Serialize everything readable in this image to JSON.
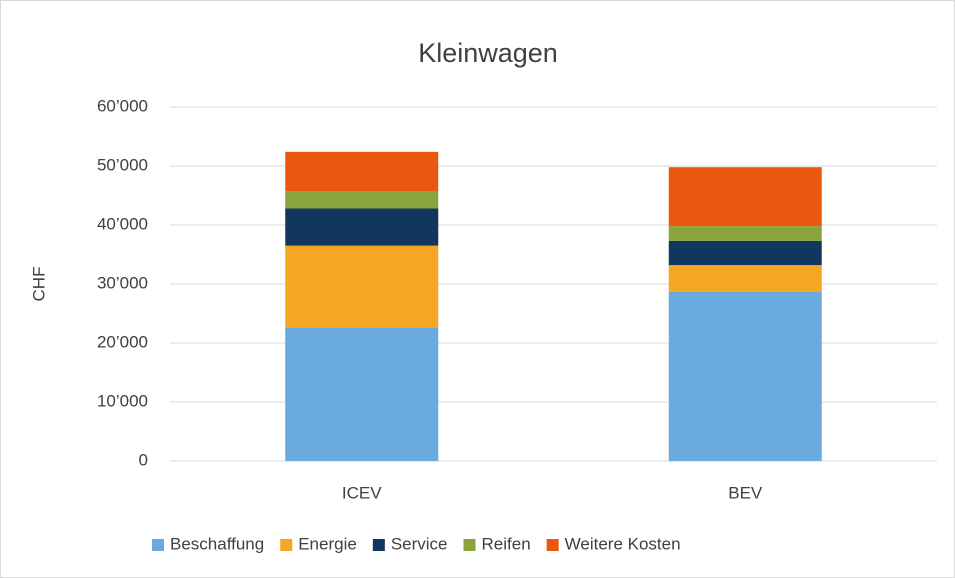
{
  "chart_data": {
    "type": "stacked_bar",
    "title": "Kleinwagen",
    "y_label": "CHF",
    "categories": [
      "ICEV",
      "BEV"
    ],
    "series": [
      {
        "name": "Beschaffung",
        "color": "#6aaadf",
        "values": [
          22600,
          28700
        ]
      },
      {
        "name": "Energie",
        "color": "#f5a623",
        "values": [
          13900,
          4500
        ]
      },
      {
        "name": "Service",
        "color": "#12375f",
        "values": [
          6300,
          4100
        ]
      },
      {
        "name": "Reifen",
        "color": "#8aa33a",
        "values": [
          2900,
          2500
        ]
      },
      {
        "name": "Weitere Kosten",
        "color": "#e8580f",
        "values": [
          6700,
          10000
        ]
      }
    ],
    "ylim": [
      0,
      60000
    ],
    "yticks": [
      0,
      {
        "value": 10000,
        "label": "10’000"
      },
      {
        "value": 20000,
        "label": "20’000"
      },
      {
        "value": 30000,
        "label": "30’000"
      },
      {
        "value": 40000,
        "label": "40’000"
      },
      {
        "value": 50000,
        "label": "50’000"
      },
      {
        "value": 60000,
        "label": "60’000"
      }
    ],
    "grid": true,
    "legend": "bottom"
  }
}
